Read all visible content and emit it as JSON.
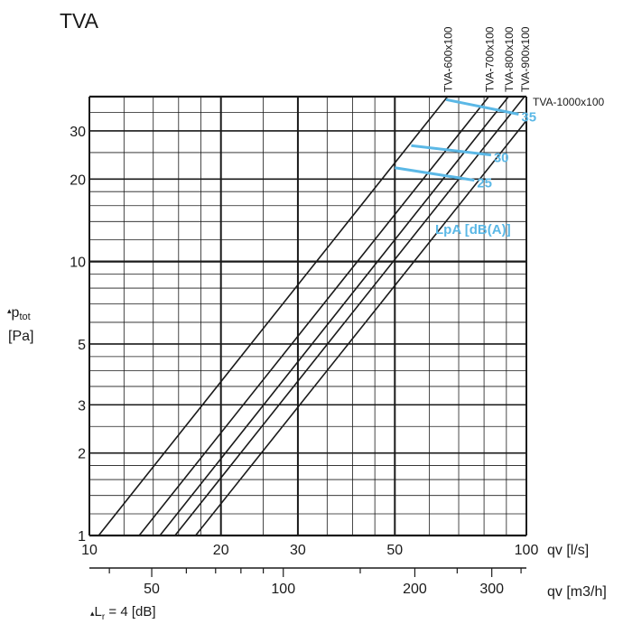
{
  "chart_data": {
    "type": "line",
    "title": "TVA",
    "xlabel": "qv [l/s]",
    "x2label": "qv [m3/h]",
    "ylabel_prefix": "▴",
    "ylabel_main": "p",
    "ylabel_sub": "tot",
    "ylabel_unit": "[Pa]",
    "footnote_prefix": "▴",
    "footnote_main": "L",
    "footnote_sub": "r",
    "footnote_rest": " = 4 [dB]",
    "x_scale": "log",
    "y_scale": "log",
    "xlim": [
      10,
      100
    ],
    "ylim": [
      1,
      40
    ],
    "grid": true,
    "x_tick_labels": [
      "10",
      "20",
      "30",
      "50",
      "100"
    ],
    "x_ticks": [
      10,
      20,
      30,
      50,
      100
    ],
    "y_tick_labels": [
      "1",
      "2",
      "3",
      "5",
      "10",
      "20",
      "30"
    ],
    "y_ticks": [
      1,
      2,
      3,
      5,
      10,
      20,
      30
    ],
    "x2_tick_labels": [
      "50",
      "100",
      "200",
      "300"
    ],
    "x2_ticks": [
      50,
      100,
      200,
      300
    ],
    "series": [
      {
        "name": "TVA-600x100",
        "points": [
          [
            10.5,
            1
          ],
          [
            66,
            40
          ]
        ]
      },
      {
        "name": "TVA-700x100",
        "points": [
          [
            13,
            1
          ],
          [
            82,
            40
          ]
        ]
      },
      {
        "name": "TVA-800x100",
        "points": [
          [
            14.5,
            1
          ],
          [
            91,
            40
          ]
        ]
      },
      {
        "name": "TVA-900x100",
        "points": [
          [
            15.7,
            1
          ],
          [
            99,
            40
          ]
        ]
      },
      {
        "name": "TVA-1000x100",
        "points": [
          [
            17.5,
            1
          ],
          [
            100,
            32.7
          ]
        ]
      }
    ],
    "sound_label": "LpA [dB(A)]",
    "sound_lines": [
      {
        "label": "35",
        "points": [
          [
            65.5,
            39
          ],
          [
            96,
            34.5
          ]
        ]
      },
      {
        "label": "30",
        "points": [
          [
            54.5,
            26.5
          ],
          [
            83,
            24.5
          ]
        ]
      },
      {
        "label": "25",
        "points": [
          [
            50,
            22
          ],
          [
            76,
            19.8
          ]
        ]
      }
    ],
    "line_color": "#1a1a1a",
    "sound_color": "#5bb8e6"
  }
}
